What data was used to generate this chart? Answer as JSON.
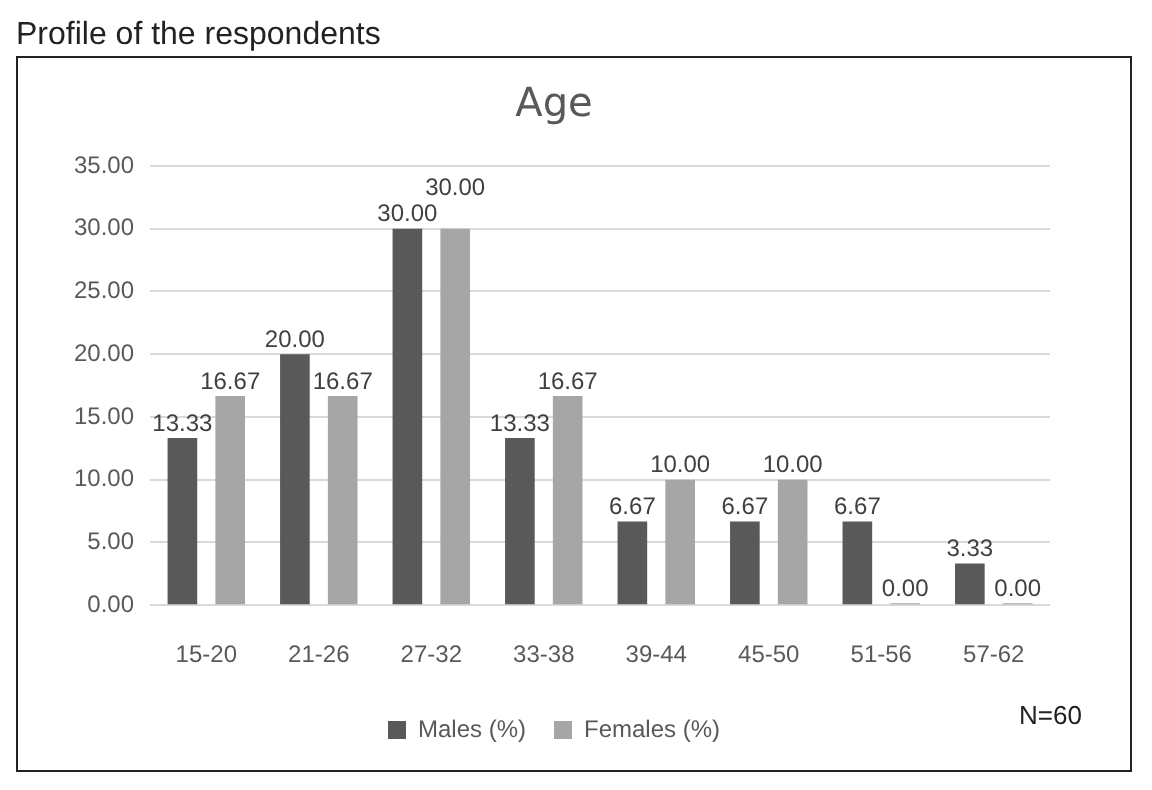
{
  "chart_data": {
    "type": "bar",
    "title": "Age",
    "annotations": [
      "Profile of the respondents",
      "N=60"
    ],
    "categories": [
      "15-20",
      "21-26",
      "27-32",
      "33-38",
      "39-44",
      "45-50",
      "51-56",
      "57-62"
    ],
    "series": [
      {
        "name": "Males (%)",
        "color": "#595959",
        "values": [
          13.33,
          20,
          30,
          13.33,
          6.67,
          6.67,
          6.67,
          3.33
        ],
        "value_labels": [
          "13.33",
          "20.00",
          "30.00",
          "13.33",
          "6.67",
          "6.67",
          "6.67",
          "3.33"
        ]
      },
      {
        "name": "Females (%)",
        "color": "#a6a6a6",
        "values": [
          16.67,
          16.67,
          30,
          16.67,
          10,
          10,
          0,
          0
        ],
        "value_labels": [
          "16.67",
          "16.67",
          "30.00",
          "16.67",
          "10.00",
          "10.00",
          "0.00",
          "0.00"
        ]
      }
    ],
    "ylim": [
      0,
      35
    ],
    "yticks": [
      {
        "value": 0,
        "label": "0.00"
      },
      {
        "value": 5,
        "label": "5.00"
      },
      {
        "value": 10,
        "label": "10.00"
      },
      {
        "value": 15,
        "label": "15.00"
      },
      {
        "value": 20,
        "label": "20.00"
      },
      {
        "value": 25,
        "label": "25.00"
      },
      {
        "value": 30,
        "label": "30.00"
      },
      {
        "value": 35,
        "label": "35.00"
      }
    ],
    "grid": "y",
    "legend": "bottom"
  }
}
